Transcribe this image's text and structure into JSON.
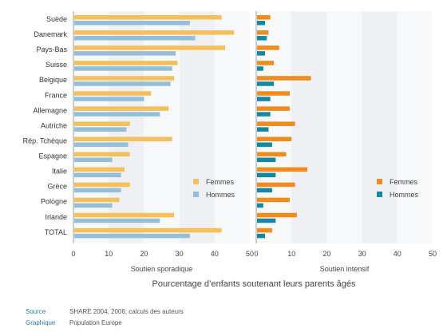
{
  "chart_data": [
    {
      "type": "bar",
      "orientation": "horizontal",
      "categories": [
        "Suède",
        "Danemark",
        "Pays-Bas",
        "Suisse",
        "Belgique",
        "France",
        "Allemagne",
        "Autriche",
        "Rép. Tchèque",
        "Espagne",
        "Italie",
        "Grèce",
        "Pologne",
        "Irlande",
        "TOTAL"
      ],
      "series": [
        {
          "name": "Femmes",
          "color": "#f5bf5a",
          "values": [
            42,
            45.5,
            43,
            29.5,
            28.5,
            22,
            27,
            16,
            28,
            16,
            14.5,
            16,
            13,
            28.5,
            42
          ]
        },
        {
          "name": "Hommes",
          "color": "#95bfd9",
          "values": [
            33,
            34.5,
            29,
            28,
            27.5,
            20,
            24.5,
            15,
            15.5,
            11,
            13.5,
            13.5,
            11,
            24.5,
            33
          ]
        }
      ],
      "xlabel": "Soutien sporadique",
      "xlim": [
        0,
        50
      ],
      "xticks": [
        0,
        10,
        20,
        30,
        40,
        50
      ],
      "legend_position": "bottom-right",
      "grid": false
    },
    {
      "type": "bar",
      "orientation": "horizontal",
      "categories": [
        "Suède",
        "Danemark",
        "Pays-Bas",
        "Suisse",
        "Belgique",
        "France",
        "Allemagne",
        "Autriche",
        "Rép. Tchèque",
        "Espagne",
        "Italie",
        "Grèce",
        "Pologne",
        "Irlande",
        "TOTAL"
      ],
      "series": [
        {
          "name": "Femmes",
          "color": "#f08b1c",
          "values": [
            4,
            3.5,
            6.5,
            5,
            15.5,
            9.5,
            9.5,
            11,
            10,
            8.5,
            14.5,
            11,
            9.5,
            11.5,
            4.5
          ]
        },
        {
          "name": "Hommes",
          "color": "#1488a3",
          "values": [
            2.5,
            3,
            2.5,
            2,
            5,
            4,
            4,
            3.5,
            4.5,
            5.5,
            5.5,
            4.5,
            2,
            5.5,
            2.5
          ]
        }
      ],
      "xlabel": "Soutien intensif",
      "xlim": [
        0,
        50
      ],
      "xticks": [
        0,
        10,
        20,
        30,
        40,
        50
      ],
      "legend_position": "bottom-right",
      "grid": false
    }
  ],
  "shared_xlabel": "Pourcentage d’enfants soutenant leurs parents âgés",
  "footer": {
    "source_label": "Source",
    "source_value": "SHARE 2004, 2006; calculs des auteurs",
    "graphic_label": "Graphique",
    "graphic_value": "Population Europe"
  }
}
